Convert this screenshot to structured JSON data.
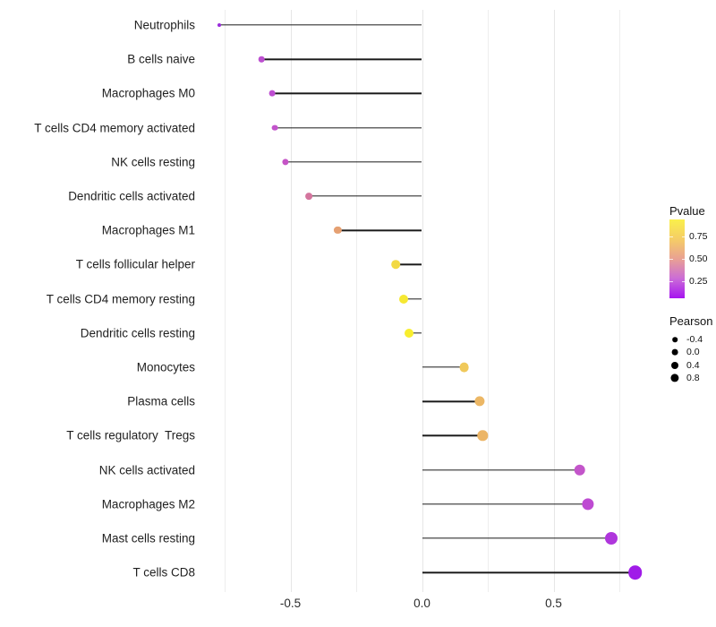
{
  "chart_data": {
    "type": "lollipop",
    "title": "",
    "xlabel": "",
    "ylabel": "",
    "x_axis": {
      "range": [
        -0.85,
        0.89
      ],
      "major_ticks": [
        -0.5,
        0.0,
        0.5
      ],
      "major_tick_labels": [
        "-0.5",
        "0.0",
        "0.5"
      ],
      "minor_gridlines": [
        -0.75,
        -0.25,
        0.25,
        0.75
      ],
      "grid": "vertical-only"
    },
    "stem_origin": 0.0,
    "points": [
      {
        "category": "Neutrophils",
        "pearson": -0.77,
        "color": "#9a2bdc",
        "radius": 2.0
      },
      {
        "category": "B cells naive",
        "pearson": -0.61,
        "color": "#bc4fd0",
        "radius": 3.3
      },
      {
        "category": "Macrophages M0",
        "pearson": -0.57,
        "color": "#be4ed1",
        "radius": 3.4
      },
      {
        "category": "T cells CD4 memory activated",
        "pearson": -0.56,
        "color": "#c254cb",
        "radius": 3.4
      },
      {
        "category": "NK cells resting",
        "pearson": -0.52,
        "color": "#c554c6",
        "radius": 3.6
      },
      {
        "category": "Dendritic cells activated",
        "pearson": -0.43,
        "color": "#d4759e",
        "radius": 3.9
      },
      {
        "category": "Macrophages M1",
        "pearson": -0.32,
        "color": "#e5a072",
        "radius": 4.1
      },
      {
        "category": "T cells follicular helper",
        "pearson": -0.1,
        "color": "#f2d943",
        "radius": 4.8
      },
      {
        "category": "T cells CD4 memory resting",
        "pearson": -0.07,
        "color": "#f6e832",
        "radius": 5.0
      },
      {
        "category": "Dendritic cells resting",
        "pearson": -0.05,
        "color": "#f8ee2e",
        "radius": 5.0
      },
      {
        "category": "Monocytes",
        "pearson": 0.16,
        "color": "#f0c95b",
        "radius": 5.4
      },
      {
        "category": "Plasma cells",
        "pearson": 0.22,
        "color": "#ecb765",
        "radius": 5.6
      },
      {
        "category": "T cells regulatory  Tregs",
        "pearson": 0.23,
        "color": "#ecb566",
        "radius": 5.7
      },
      {
        "category": "NK cells activated",
        "pearson": 0.6,
        "color": "#c355ca",
        "radius": 6.3
      },
      {
        "category": "Macrophages M2",
        "pearson": 0.63,
        "color": "#be4bd2",
        "radius": 6.6
      },
      {
        "category": "Mast cells resting",
        "pearson": 0.72,
        "color": "#af36dc",
        "radius": 7.0
      },
      {
        "category": "T cells CD8",
        "pearson": 0.81,
        "color": "#a01be8",
        "radius": 7.8
      }
    ],
    "legends": {
      "pvalue": {
        "title": "Pvalue",
        "tick_labels": [
          "0.75",
          "0.50",
          "0.25"
        ],
        "gradient_top_to_bottom": [
          "#faf04b",
          "#f5cd66",
          "#e9a193",
          "#cb6cd7",
          "#a614f0"
        ]
      },
      "pearson": {
        "title": "Pearson",
        "entries": [
          {
            "label": "-0.4",
            "radius": 2.8
          },
          {
            "label": "0.0",
            "radius": 3.4
          },
          {
            "label": "0.4",
            "radius": 4.0
          },
          {
            "label": "0.8",
            "radius": 4.6
          }
        ]
      }
    }
  }
}
